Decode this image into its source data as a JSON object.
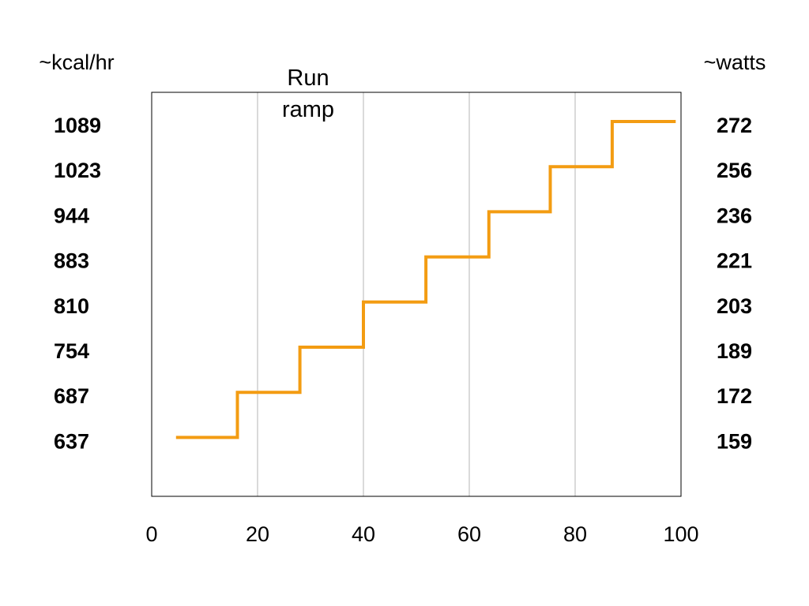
{
  "chart_data": {
    "type": "line",
    "step": true,
    "x": [
      4.6,
      16.2,
      16.2,
      28.0,
      28.0,
      40.0,
      40.0,
      51.8,
      51.8,
      63.7,
      63.7,
      75.3,
      75.3,
      87.0,
      87.0,
      99.0
    ],
    "y": [
      637,
      637,
      687,
      687,
      754,
      754,
      810,
      810,
      883,
      883,
      944,
      944,
      1023,
      1023,
      1089,
      1089
    ],
    "xlim": [
      0,
      100
    ],
    "xticks": [
      "0",
      "20",
      "40",
      "60",
      "80",
      "100"
    ],
    "xtick_values": [
      0,
      20,
      40,
      60,
      80,
      100
    ],
    "grid": "vertical",
    "line_color": "#f39c12",
    "left_axis": {
      "label": "~kcal/hr",
      "values": [
        "1089",
        "1023",
        "944",
        "883",
        "810",
        "754",
        "687",
        "637"
      ]
    },
    "right_axis": {
      "label": "~watts",
      "values": [
        "272",
        "256",
        "236",
        "221",
        "203",
        "189",
        "172",
        "159"
      ]
    },
    "annotation": [
      "Run",
      "ramp"
    ]
  }
}
